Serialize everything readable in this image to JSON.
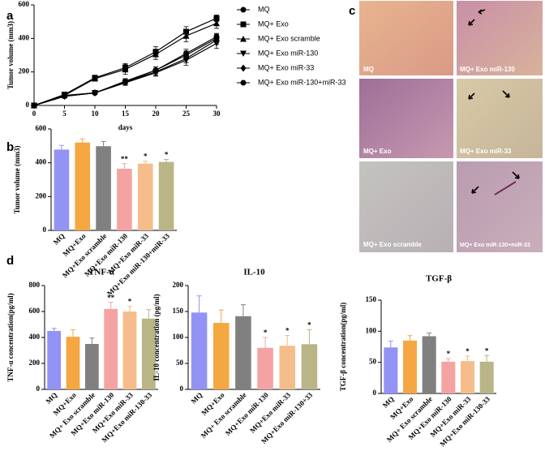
{
  "chart_data": [
    {
      "type": "line",
      "panel": "a",
      "xlabel": "days",
      "ylabel": "Tumor volume (mm3)",
      "x": [
        0,
        5,
        10,
        15,
        20,
        25,
        30
      ],
      "xlim": [
        0,
        30
      ],
      "xticks": [
        0,
        5,
        10,
        15,
        20,
        25,
        30
      ],
      "ylim": [
        0,
        600
      ],
      "yticks": [
        0,
        200,
        400,
        600
      ],
      "series": [
        {
          "name": "MQ",
          "color": "#000000",
          "marker": "circle",
          "values": [
            0,
            60,
            75,
            140,
            210,
            300,
            400
          ],
          "errors": [
            0,
            8,
            10,
            15,
            20,
            25,
            25
          ]
        },
        {
          "name": "MQ+ Exo",
          "color": "#000000",
          "marker": "square",
          "values": [
            0,
            65,
            165,
            225,
            320,
            440,
            520
          ],
          "errors": [
            0,
            10,
            15,
            25,
            30,
            30,
            20
          ]
        },
        {
          "name": "MQ+ Exo scramble",
          "color": "#000000",
          "marker": "triangle-up",
          "values": [
            0,
            60,
            160,
            215,
            305,
            415,
            490
          ],
          "errors": [
            0,
            10,
            15,
            30,
            30,
            35,
            30
          ]
        },
        {
          "name": "MQ+ Exo miR-130",
          "color": "#000000",
          "marker": "triangle-down",
          "values": [
            0,
            55,
            75,
            135,
            195,
            270,
            370
          ],
          "errors": [
            0,
            8,
            10,
            15,
            20,
            30,
            30
          ]
        },
        {
          "name": "MQ+ Exo miR-33",
          "color": "#000000",
          "marker": "diamond",
          "values": [
            0,
            55,
            75,
            140,
            200,
            280,
            390
          ],
          "errors": [
            0,
            8,
            10,
            15,
            20,
            25,
            25
          ]
        },
        {
          "name": "MQ+ Exo miR-130+miR-33",
          "color": "#000000",
          "marker": "circle",
          "values": [
            0,
            55,
            75,
            145,
            210,
            310,
            410
          ],
          "errors": [
            0,
            8,
            10,
            15,
            20,
            25,
            20
          ]
        }
      ]
    },
    {
      "type": "bar",
      "panel": "b",
      "ylabel": "Tumor volume (mm3)",
      "categories": [
        "MQ",
        "MQ+Exo",
        "MQ+Exo scramble",
        "MQ+Exo miR-130",
        "MQ+Exo miR-33",
        "MQ+Exo miR-130+miR-33"
      ],
      "values": [
        478,
        520,
        498,
        365,
        395,
        405
      ],
      "errors": [
        25,
        22,
        28,
        30,
        15,
        15
      ],
      "significance": [
        null,
        null,
        null,
        "**",
        "*",
        "*"
      ],
      "colors": [
        "#9393f5",
        "#f5a742",
        "#808080",
        "#f4a3a3",
        "#f5bd8c",
        "#bab587"
      ],
      "ylim": [
        0,
        600
      ],
      "yticks": [
        0,
        200,
        400,
        600
      ]
    },
    {
      "type": "image-grid",
      "panel": "c",
      "images": [
        {
          "label": "MQ"
        },
        {
          "label": "MQ+ Exo miR-130"
        },
        {
          "label": "MQ+ Exo"
        },
        {
          "label": "MQ+ Exo miR-33"
        },
        {
          "label": "MQ+ Exo scramble"
        },
        {
          "label": "MQ+ Exo miR-130+miR-33"
        }
      ]
    },
    {
      "type": "bar",
      "panel": "d",
      "title": "TNF-α",
      "ylabel": "TNF-α concentration(pg/ml)",
      "categories": [
        "MQ",
        "MQ+Exo",
        "MQ+ Exo scramble",
        "MQ+Exo miR-130",
        "MQ+Exo miR-33",
        "MQ+Exo miR-130-33"
      ],
      "values": [
        450,
        405,
        350,
        620,
        600,
        545
      ],
      "errors": [
        20,
        55,
        45,
        50,
        40,
        70
      ],
      "significance": [
        null,
        null,
        null,
        "**",
        "*",
        null
      ],
      "colors": [
        "#9393f5",
        "#f5a742",
        "#808080",
        "#f4a3a3",
        "#f5bd8c",
        "#bab587"
      ],
      "ylim": [
        0,
        800
      ],
      "yticks": [
        0,
        200,
        400,
        600,
        800
      ]
    },
    {
      "type": "bar",
      "title": "IL-10",
      "ylabel": "IL-10 concentration (pg/ml)",
      "categories": [
        "MQ",
        "MQ+Exo",
        "MQ+ Exo scramble",
        "MQ+Exo miR-130",
        "MQ+Exo miR-33",
        "MQ+Exo miR-130+33"
      ],
      "values": [
        148,
        128,
        141,
        80,
        84,
        87
      ],
      "errors": [
        32,
        25,
        22,
        20,
        20,
        28
      ],
      "significance": [
        null,
        null,
        null,
        "*",
        "*",
        "*"
      ],
      "colors": [
        "#9393f5",
        "#f5a742",
        "#808080",
        "#f4a3a3",
        "#f5bd8c",
        "#bab587"
      ],
      "ylim": [
        0,
        200
      ],
      "yticks": [
        0,
        50,
        100,
        150,
        200
      ]
    },
    {
      "type": "bar",
      "title": "TGF-β",
      "ylabel": "TGF-β concentration(pg/ml)",
      "categories": [
        "MQ",
        "MQ+Exo",
        "MQ+ Exo scramble",
        "MQ+Exo miR-130",
        "MQ+Exo miR-33",
        "MQ+Exo miR-130-33"
      ],
      "values": [
        74,
        85,
        92,
        51,
        52,
        51
      ],
      "errors": [
        10,
        8,
        5,
        5,
        8,
        10
      ],
      "significance": [
        null,
        null,
        null,
        "*",
        "*",
        "*"
      ],
      "colors": [
        "#9393f5",
        "#f5a742",
        "#808080",
        "#f4a3a3",
        "#f5bd8c",
        "#bab587"
      ],
      "ylim": [
        0,
        150
      ],
      "yticks": [
        0,
        50,
        100,
        150
      ]
    }
  ]
}
